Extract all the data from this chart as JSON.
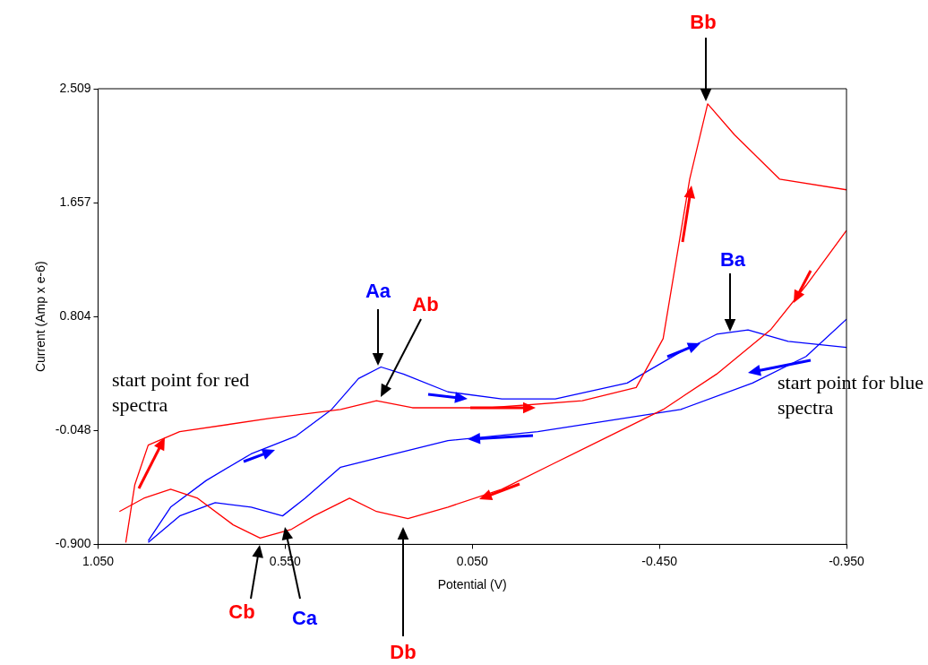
{
  "chart_data": {
    "type": "line",
    "xlabel": "Potential (V)",
    "ylabel": "Current (Amp x e-6)",
    "xlim": [
      1.05,
      -0.95
    ],
    "xticks": [
      {
        "value": 1.05,
        "label": "1.050"
      },
      {
        "value": 0.55,
        "label": "0.550"
      },
      {
        "value": 0.05,
        "label": "0.050"
      },
      {
        "value": -0.45,
        "label": "-0.450"
      },
      {
        "value": -0.95,
        "label": "-0.950"
      }
    ],
    "ylim": [
      -0.9,
      2.509
    ],
    "yticks": [
      {
        "value": -0.9,
        "label": "-0.900"
      },
      -0.048,
      0.804,
      1.657,
      2.509
    ],
    "grid": false,
    "legend": false,
    "marker": "none",
    "line_style": "solid",
    "series": [
      {
        "color": "#ff0000",
        "x": [
          0.976,
          0.952,
          0.916,
          0.832,
          0.593,
          0.402,
          0.306,
          0.21,
          0.005,
          -0.244,
          -0.388,
          -0.46,
          -0.531,
          -0.579,
          -0.651,
          -0.771,
          -0.95
        ],
        "values": [
          -0.886,
          -0.455,
          -0.157,
          -0.057,
          0.042,
          0.109,
          0.175,
          0.122,
          0.122,
          0.175,
          0.274,
          0.639,
          1.833,
          2.396,
          2.164,
          1.833,
          1.753
        ]
      },
      {
        "color": "#ff0000",
        "x": [
          -0.95,
          -0.842,
          -0.747,
          -0.603,
          -0.46,
          -0.316,
          -0.172,
          -0.029,
          0.115,
          0.222,
          0.306,
          0.378,
          0.473,
          0.533,
          0.617,
          0.689,
          0.784,
          0.856,
          0.928,
          0.993
        ],
        "values": [
          1.448,
          1.037,
          0.705,
          0.374,
          0.109,
          -0.09,
          -0.289,
          -0.488,
          -0.621,
          -0.707,
          -0.654,
          -0.555,
          -0.687,
          -0.787,
          -0.853,
          -0.754,
          -0.555,
          -0.488,
          -0.555,
          -0.654
        ]
      },
      {
        "color": "#0000ff",
        "x": [
          -0.95,
          -0.842,
          -0.699,
          -0.507,
          -0.125,
          0.115,
          0.306,
          0.402,
          0.497,
          0.557,
          0.641,
          0.737,
          0.832,
          0.916
        ],
        "values": [
          0.785,
          0.506,
          0.307,
          0.109,
          -0.057,
          -0.124,
          -0.256,
          -0.323,
          -0.555,
          -0.687,
          -0.621,
          -0.588,
          -0.687,
          -0.886
        ]
      },
      {
        "color": "#0000ff",
        "x": [
          0.916,
          0.856,
          0.761,
          0.641,
          0.521,
          0.426,
          0.354,
          0.294,
          0.234,
          0.115,
          -0.029,
          -0.172,
          -0.364,
          -0.507,
          -0.603,
          -0.687,
          -0.794,
          -0.95
        ],
        "values": [
          -0.873,
          -0.621,
          -0.422,
          -0.223,
          -0.09,
          0.109,
          0.341,
          0.427,
          0.374,
          0.241,
          0.188,
          0.188,
          0.307,
          0.54,
          0.672,
          0.705,
          0.619,
          0.573
        ]
      }
    ],
    "annotations": [
      "Bb",
      "Ba",
      "Aa",
      "Ab",
      "Cb",
      "Ca",
      "Db",
      "start point for red spectra",
      "start point for blue spectra"
    ]
  }
}
